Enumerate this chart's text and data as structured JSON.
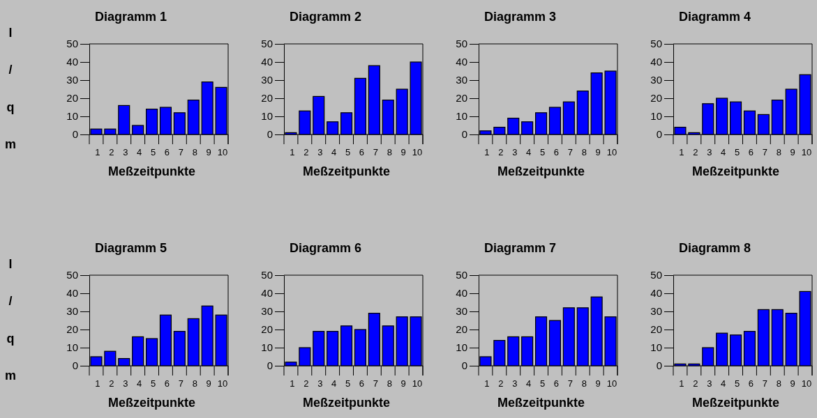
{
  "chart_data": [
    {
      "type": "bar",
      "title": "Diagramm 1",
      "xlabel": "Meßzeitpunkte",
      "ylabel": "l/qm",
      "categories": [
        "1",
        "2",
        "3",
        "4",
        "5",
        "6",
        "7",
        "8",
        "9",
        "10"
      ],
      "values": [
        3,
        3,
        16,
        5,
        14,
        15,
        12,
        19,
        29,
        26
      ],
      "color": "#0000ff",
      "ylim": [
        0,
        50
      ],
      "yticks": [
        0,
        10,
        20,
        30,
        40,
        50
      ]
    },
    {
      "type": "bar",
      "title": "Diagramm 2",
      "xlabel": "Meßzeitpunkte",
      "categories": [
        "1",
        "2",
        "3",
        "4",
        "5",
        "6",
        "7",
        "8",
        "9",
        "10"
      ],
      "values": [
        1,
        13,
        21,
        7,
        12,
        31,
        38,
        19,
        25,
        40
      ],
      "color": "#0000ff",
      "ylim": [
        0,
        50
      ],
      "yticks": [
        0,
        10,
        20,
        30,
        40,
        50
      ]
    },
    {
      "type": "bar",
      "title": "Diagramm 3",
      "xlabel": "Meßzeitpunkte",
      "categories": [
        "1",
        "2",
        "3",
        "4",
        "5",
        "6",
        "7",
        "8",
        "9",
        "10"
      ],
      "values": [
        2,
        4,
        9,
        7,
        12,
        15,
        18,
        24,
        34,
        35
      ],
      "color": "#0000ff",
      "ylim": [
        0,
        50
      ],
      "yticks": [
        0,
        10,
        20,
        30,
        40,
        50
      ]
    },
    {
      "type": "bar",
      "title": "Diagramm 4",
      "xlabel": "Meßzeitpunkte",
      "categories": [
        "1",
        "2",
        "3",
        "4",
        "5",
        "6",
        "7",
        "8",
        "9",
        "10"
      ],
      "values": [
        4,
        1,
        17,
        20,
        18,
        13,
        11,
        19,
        25,
        33
      ],
      "color": "#0000ff",
      "ylim": [
        0,
        50
      ],
      "yticks": [
        0,
        10,
        20,
        30,
        40,
        50
      ]
    },
    {
      "type": "bar",
      "title": "Diagramm 5",
      "xlabel": "Meßzeitpunkte",
      "ylabel": "l/qm",
      "categories": [
        "1",
        "2",
        "3",
        "4",
        "5",
        "6",
        "7",
        "8",
        "9",
        "10"
      ],
      "values": [
        5,
        8,
        4,
        16,
        15,
        28,
        19,
        26,
        33,
        28
      ],
      "color": "#0000ff",
      "ylim": [
        0,
        50
      ],
      "yticks": [
        0,
        10,
        20,
        30,
        40,
        50
      ]
    },
    {
      "type": "bar",
      "title": "Diagramm 6",
      "xlabel": "Meßzeitpunkte",
      "categories": [
        "1",
        "2",
        "3",
        "4",
        "5",
        "6",
        "7",
        "8",
        "9",
        "10"
      ],
      "values": [
        2,
        10,
        19,
        19,
        22,
        20,
        29,
        22,
        27,
        27
      ],
      "color": "#0000ff",
      "ylim": [
        0,
        50
      ],
      "yticks": [
        0,
        10,
        20,
        30,
        40,
        50
      ]
    },
    {
      "type": "bar",
      "title": "Diagramm 7",
      "xlabel": "Meßzeitpunkte",
      "categories": [
        "1",
        "2",
        "3",
        "4",
        "5",
        "6",
        "7",
        "8",
        "9",
        "10"
      ],
      "values": [
        5,
        14,
        16,
        16,
        27,
        25,
        32,
        32,
        38,
        27
      ],
      "color": "#0000ff",
      "ylim": [
        0,
        50
      ],
      "yticks": [
        0,
        10,
        20,
        30,
        40,
        50
      ]
    },
    {
      "type": "bar",
      "title": "Diagramm 8",
      "xlabel": "Meßzeitpunkte",
      "categories": [
        "1",
        "2",
        "3",
        "4",
        "5",
        "6",
        "7",
        "8",
        "9",
        "10"
      ],
      "values": [
        1,
        1,
        10,
        18,
        17,
        19,
        31,
        31,
        29,
        41
      ],
      "color": "#0000ff",
      "ylim": [
        0,
        50
      ],
      "yticks": [
        0,
        10,
        20,
        30,
        40,
        50
      ]
    }
  ]
}
